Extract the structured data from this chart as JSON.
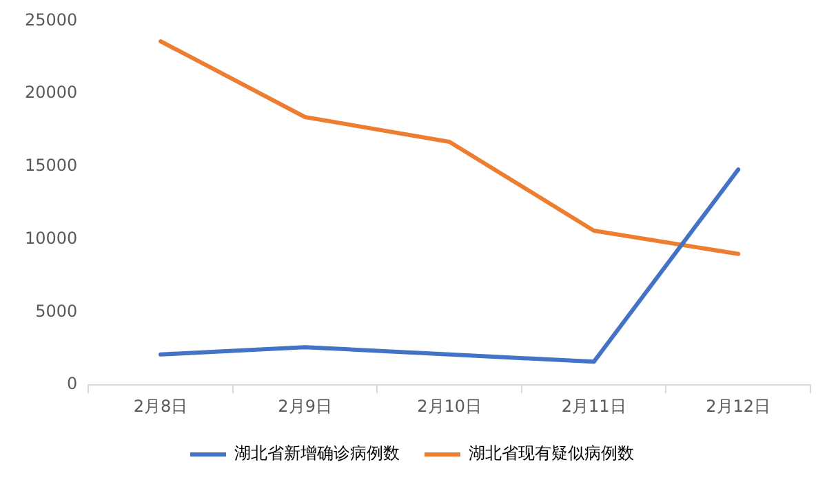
{
  "chart_data": {
    "type": "line",
    "categories": [
      "2月8日",
      "2月9日",
      "2月10日",
      "2月11日",
      "2月12日"
    ],
    "series": [
      {
        "name": "湖北省新增确诊病例数",
        "color": "#4472c4",
        "values": [
          2100,
          2600,
          2100,
          1600,
          14800
        ]
      },
      {
        "name": "湖北省现有疑似病例数",
        "color": "#ed7d31",
        "values": [
          23600,
          18400,
          16700,
          10600,
          9000
        ]
      }
    ],
    "ylim": [
      0,
      25000
    ],
    "yticks": [
      0,
      5000,
      10000,
      15000,
      20000,
      25000
    ],
    "grid": false,
    "legend": "bottom",
    "marker": "none",
    "line_style": "solid"
  }
}
